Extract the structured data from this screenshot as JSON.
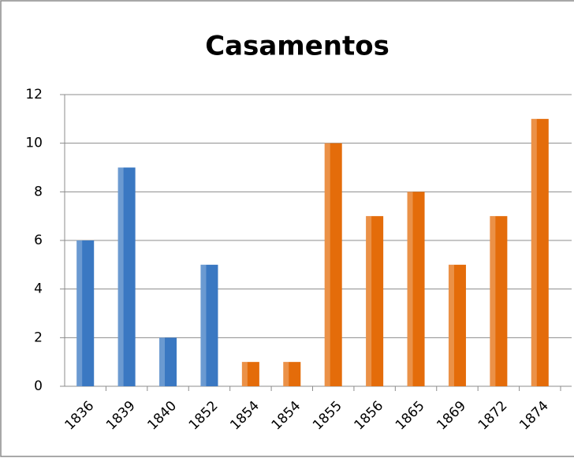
{
  "chart_data": {
    "type": "bar",
    "title": "Casamentos",
    "categories": [
      "1836",
      "1839",
      "1840",
      "1852",
      "1854",
      "1854",
      "1855",
      "1856",
      "1865",
      "1869",
      "1872",
      "1874"
    ],
    "values": [
      6,
      9,
      2,
      5,
      1,
      1,
      10,
      7,
      8,
      5,
      7,
      11
    ],
    "colors": [
      "#3a78c2",
      "#3a78c2",
      "#3a78c2",
      "#3a78c2",
      "#e46c0a",
      "#e46c0a",
      "#e46c0a",
      "#e46c0a",
      "#e46c0a",
      "#e46c0a",
      "#e46c0a",
      "#e46c0a"
    ],
    "ylim": [
      0,
      12
    ],
    "yticks": [
      0,
      2,
      4,
      6,
      8,
      10,
      12
    ],
    "grid": true
  }
}
